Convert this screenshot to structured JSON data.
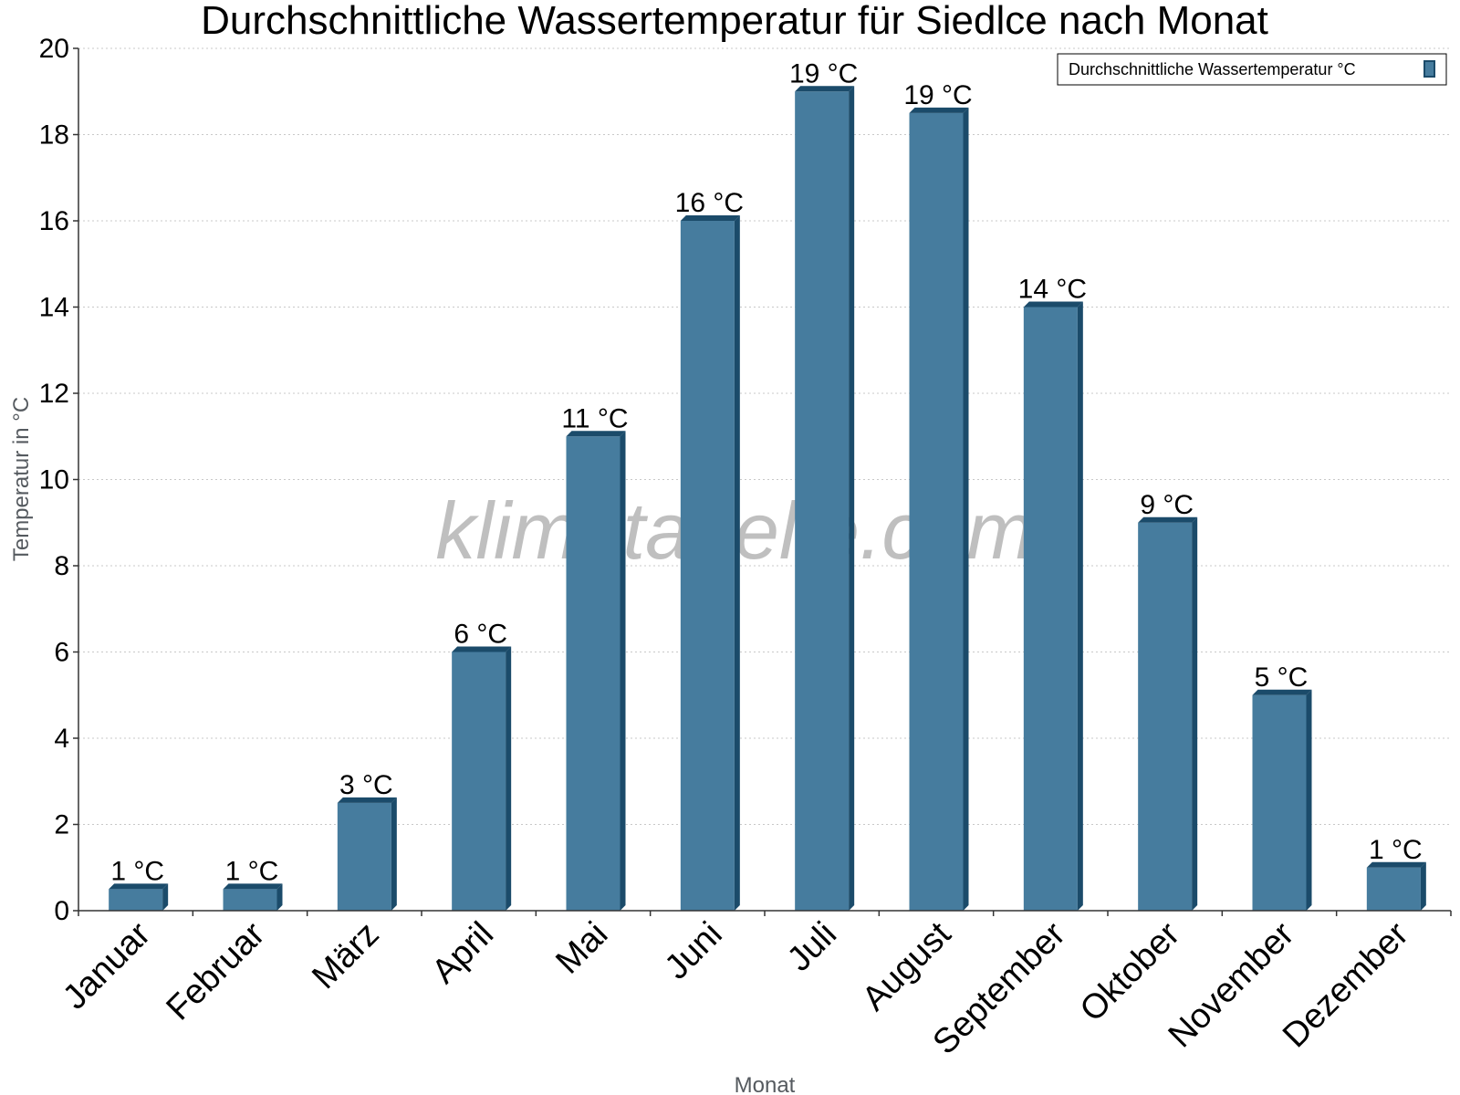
{
  "chart_data": {
    "type": "bar",
    "title": "Durchschnittliche Wassertemperatur für Siedlce nach Monat",
    "xlabel": "Monat",
    "ylabel": "Temperatur in °C",
    "categories": [
      "Januar",
      "Februar",
      "März",
      "April",
      "Mai",
      "Juni",
      "Juli",
      "August",
      "September",
      "Oktober",
      "November",
      "Dezember"
    ],
    "series": [
      {
        "name": "Durchschnittliche Wassertemperatur °C",
        "values": [
          0.5,
          0.5,
          2.5,
          6,
          11,
          16,
          19,
          18.5,
          14,
          9,
          5,
          1
        ],
        "labels": [
          "1 °C",
          "1 °C",
          "3 °C",
          "6 °C",
          "11 °C",
          "16 °C",
          "19 °C",
          "19 °C",
          "14 °C",
          "9 °C",
          "5 °C",
          "1 °C"
        ]
      }
    ],
    "ylim": [
      0,
      20
    ],
    "yticks": [
      0,
      2,
      4,
      6,
      8,
      10,
      12,
      14,
      16,
      18,
      20
    ],
    "grid": true,
    "legend_position": "top-right",
    "watermark": "klimatabelle.com",
    "colors": {
      "bar": "#467c9e",
      "bar_dark": "#1b4b6a",
      "grid": "#c8c8c8"
    }
  }
}
